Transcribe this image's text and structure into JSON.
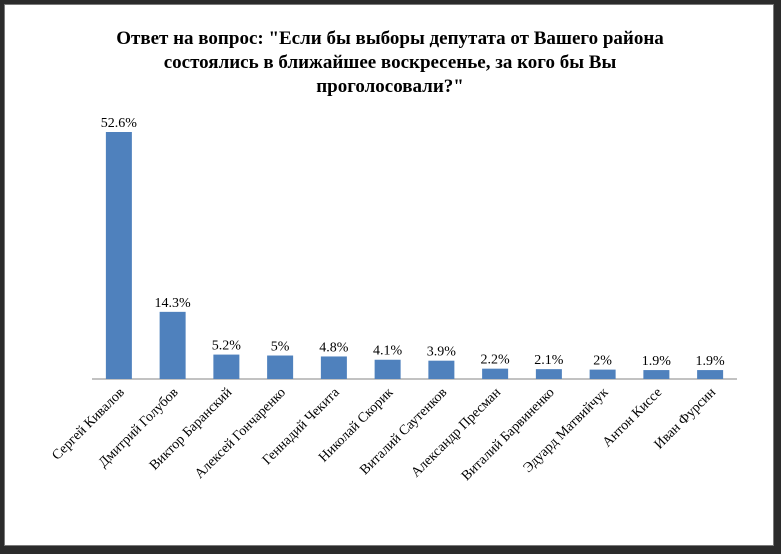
{
  "chart_data": {
    "type": "bar",
    "title_lines": [
      "Ответ на вопрос: \"Если бы выборы депутата от Вашего района",
      "состоялись в ближайшее воскресенье, за кого бы Вы",
      "проголосовали?\""
    ],
    "categories": [
      "Сергей Кивалов",
      "Дмитрий Голубов",
      "Виктор Баранский",
      "Алексей Гончаренко",
      "Геннадий Чекита",
      "Николай Скорик",
      "Виталий Саутенков",
      "Александр Пресман",
      "Виталий Барвиненко",
      "Эдуард Матвийчук",
      "Антон Киссе",
      "Иван Фурсин"
    ],
    "values": [
      52.6,
      14.3,
      5.2,
      5.0,
      4.8,
      4.1,
      3.9,
      2.2,
      2.1,
      2.0,
      1.9,
      1.9
    ],
    "data_labels": [
      "52.6%",
      "14.3%",
      "5.2%",
      "5%",
      "4.8%",
      "4.1%",
      "3.9%",
      "2.2%",
      "2.1%",
      "2%",
      "1.9%",
      "1.9%"
    ],
    "xlabel": "",
    "ylabel": "",
    "ylim": [
      0,
      55
    ],
    "grid": false,
    "legend": "none",
    "bar_color": "#4f81bd"
  }
}
